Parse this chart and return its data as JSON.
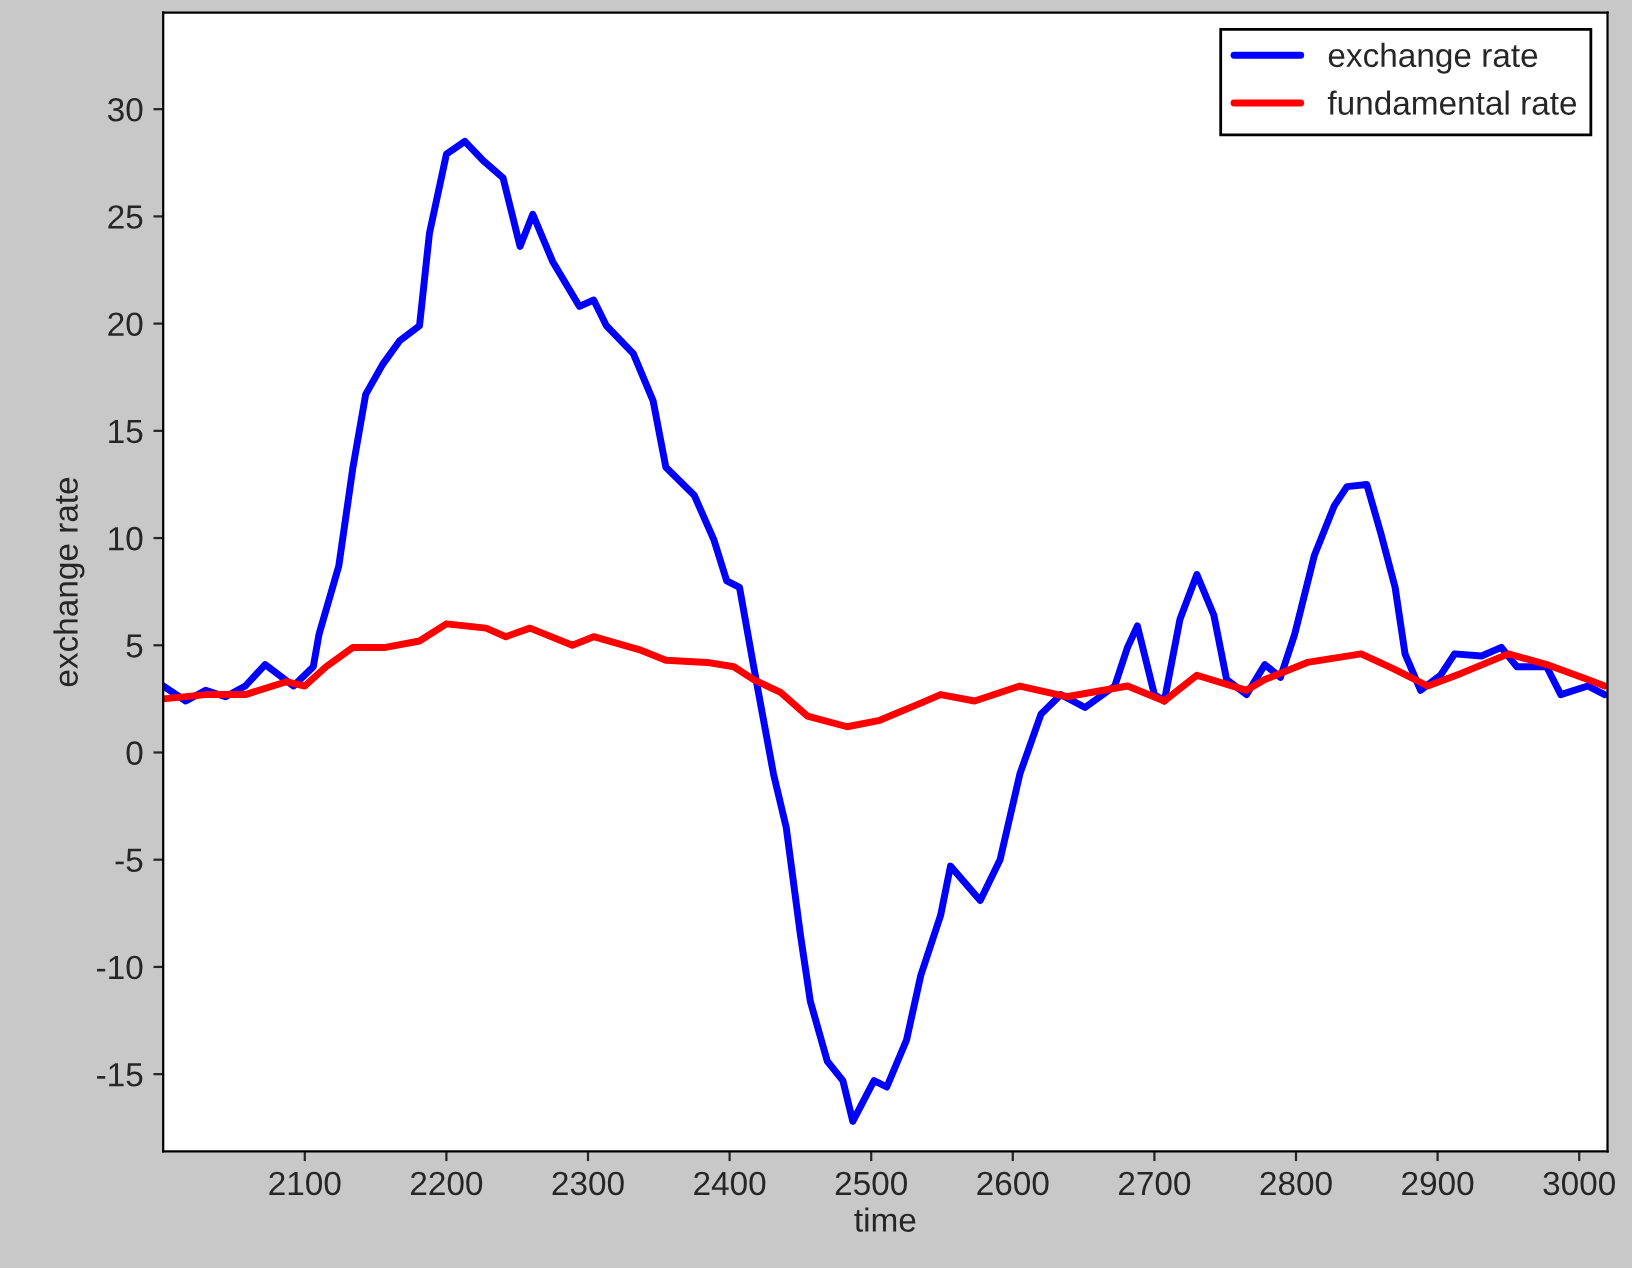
{
  "chart_data": {
    "type": "line",
    "xlabel": "time",
    "ylabel": "exchange rate",
    "xlim": [
      2000,
      3020
    ],
    "ylim": [
      -18.6,
      34.5
    ],
    "xticks": [
      2100,
      2200,
      2300,
      2400,
      2500,
      2600,
      2700,
      2800,
      2900,
      3000
    ],
    "yticks": [
      -15,
      -10,
      -5,
      0,
      5,
      10,
      15,
      20,
      25,
      30
    ],
    "grid": false,
    "legend": "top right",
    "marker": "none",
    "line_style": "solid",
    "series": [
      {
        "name": "exchange rate",
        "color": "#0000ff",
        "x": [
          2000,
          2016,
          2030,
          2044,
          2058,
          2072,
          2092,
          2106,
          2110,
          2124,
          2134,
          2143,
          2155,
          2167,
          2181,
          2188,
          2200,
          2213,
          2226,
          2240,
          2252,
          2261,
          2275,
          2294,
          2304,
          2313,
          2332,
          2346,
          2355,
          2375,
          2389,
          2398,
          2407,
          2417,
          2431,
          2440,
          2450,
          2457,
          2469,
          2480,
          2487,
          2502,
          2511,
          2525,
          2535,
          2549,
          2556,
          2577,
          2591,
          2605,
          2620,
          2634,
          2651,
          2672,
          2681,
          2688,
          2700,
          2707,
          2718,
          2730,
          2742,
          2751,
          2765,
          2778,
          2789,
          2799,
          2813,
          2827,
          2836,
          2850,
          2860,
          2870,
          2877,
          2888,
          2902,
          2912,
          2931,
          2945,
          2956,
          2977,
          2987,
          3006,
          3018
        ],
        "values": [
          3.1,
          2.4,
          2.9,
          2.6,
          3.1,
          4.1,
          3.1,
          4.0,
          5.5,
          8.7,
          13.3,
          16.7,
          18.1,
          19.2,
          19.9,
          24.2,
          27.9,
          28.5,
          27.6,
          26.8,
          23.6,
          25.1,
          22.9,
          20.8,
          21.1,
          19.9,
          18.6,
          16.4,
          13.3,
          12.0,
          9.9,
          8.0,
          7.7,
          4.0,
          -1.0,
          -3.5,
          -8.5,
          -11.6,
          -14.4,
          -15.3,
          -17.2,
          -15.3,
          -15.6,
          -13.4,
          -10.4,
          -7.6,
          -5.3,
          -6.9,
          -5.0,
          -1.0,
          1.8,
          2.7,
          2.1,
          3.1,
          4.9,
          5.9,
          2.7,
          2.4,
          6.2,
          8.3,
          6.4,
          3.4,
          2.7,
          4.1,
          3.5,
          5.5,
          9.2,
          11.5,
          12.4,
          12.5,
          10.2,
          7.7,
          4.6,
          2.9,
          3.6,
          4.6,
          4.5,
          4.9,
          4.0,
          4.0,
          2.7,
          3.1,
          2.7
        ]
      },
      {
        "name": "fundamental rate",
        "color": "#ff0000",
        "x": [
          2000,
          2030,
          2058,
          2087,
          2100,
          2115,
          2134,
          2157,
          2181,
          2200,
          2228,
          2242,
          2259,
          2289,
          2304,
          2336,
          2355,
          2384,
          2403,
          2417,
          2436,
          2455,
          2483,
          2506,
          2535,
          2549,
          2573,
          2605,
          2638,
          2681,
          2707,
          2730,
          2765,
          2778,
          2808,
          2846,
          2869,
          2893,
          2917,
          2950,
          2977,
          3006,
          3018
        ],
        "values": [
          2.5,
          2.7,
          2.7,
          3.3,
          3.1,
          4.0,
          4.9,
          4.9,
          5.2,
          6.0,
          5.8,
          5.4,
          5.8,
          5.0,
          5.4,
          4.8,
          4.3,
          4.2,
          4.0,
          3.4,
          2.8,
          1.7,
          1.2,
          1.5,
          2.3,
          2.7,
          2.4,
          3.1,
          2.6,
          3.1,
          2.4,
          3.6,
          2.9,
          3.4,
          4.2,
          4.6,
          3.9,
          3.1,
          3.7,
          4.6,
          4.1,
          3.4,
          3.1
        ]
      }
    ]
  }
}
